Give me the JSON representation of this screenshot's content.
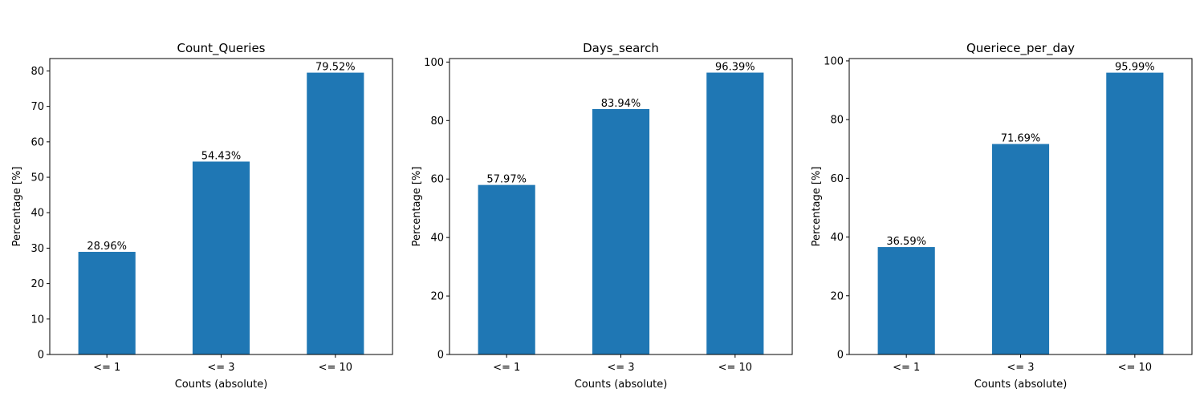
{
  "chart_data": [
    {
      "type": "bar",
      "title": "Count_Queries",
      "categories": [
        "<= 1",
        "<= 3",
        "<= 10"
      ],
      "values": [
        28.96,
        54.43,
        79.52
      ],
      "data_labels": [
        "28.96%",
        "54.43%",
        "79.52%"
      ],
      "xlabel": "Counts (absolute)",
      "ylabel": "Percentage [%]",
      "ylim": [
        0,
        83.5
      ],
      "yticks": [
        0,
        10,
        20,
        30,
        40,
        50,
        60,
        70,
        80
      ],
      "grid": false,
      "color": "#1f77b4"
    },
    {
      "type": "bar",
      "title": "Days_search",
      "categories": [
        "<= 1",
        "<= 3",
        "<= 10"
      ],
      "values": [
        57.97,
        83.94,
        96.39
      ],
      "data_labels": [
        "57.97%",
        "83.94%",
        "96.39%"
      ],
      "xlabel": "Counts (absolute)",
      "ylabel": "Percentage [%]",
      "ylim": [
        0,
        101.2
      ],
      "yticks": [
        0,
        20,
        40,
        60,
        80,
        100
      ],
      "grid": false,
      "color": "#1f77b4"
    },
    {
      "type": "bar",
      "title": "Queriece_per_day",
      "categories": [
        "<= 1",
        "<= 3",
        "<= 10"
      ],
      "values": [
        36.59,
        71.69,
        95.99
      ],
      "data_labels": [
        "36.59%",
        "71.69%",
        "95.99%"
      ],
      "xlabel": "Counts (absolute)",
      "ylabel": "Percentage [%]",
      "ylim": [
        0,
        100.8
      ],
      "yticks": [
        0,
        20,
        40,
        60,
        80,
        100
      ],
      "grid": false,
      "color": "#1f77b4"
    }
  ]
}
